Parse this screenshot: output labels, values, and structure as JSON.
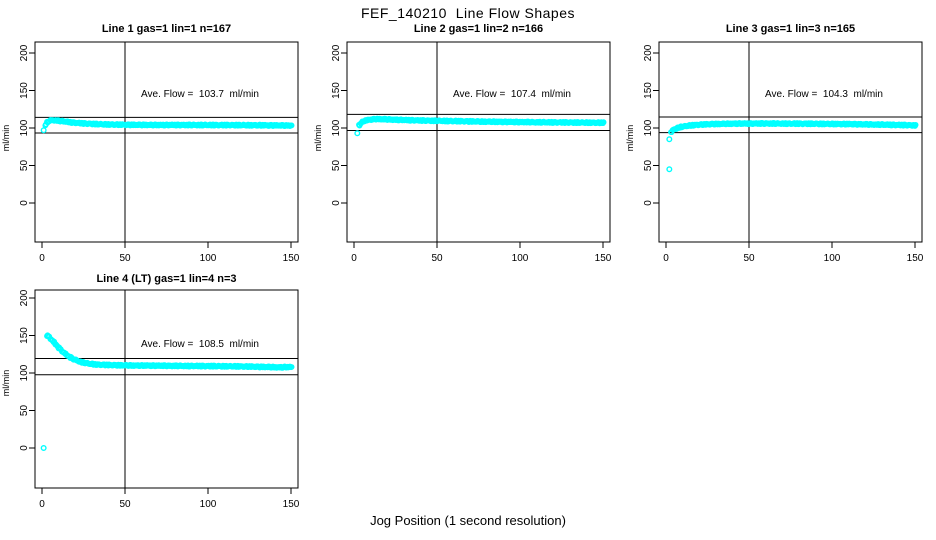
{
  "page": {
    "title": "FEF_140210  Line Flow Shapes",
    "xlabel": "Jog Position (1 second resolution)",
    "point_color": "#00FFFF",
    "axis_color": "#000000",
    "background_color": "#FFFFFF"
  },
  "chart_data": [
    {
      "type": "scatter",
      "title": "Line 1 gas=1 lin=1 n=167",
      "annotation": "Ave. Flow =  103.7  ml/min",
      "ave_flow_ml_min": 103.7,
      "n": 167,
      "ylabel": "ml/min",
      "x_ticks": [
        0,
        50,
        100,
        150
      ],
      "y_ticks": [
        0,
        50,
        100,
        150,
        200
      ],
      "v_ref_line_x": 50,
      "h_ref_lines_y": [
        93.3,
        114.1
      ],
      "x_range": [
        1,
        150
      ],
      "outliers": [
        [
          1,
          97
        ]
      ],
      "band_anchors": [
        [
          2,
          104
        ],
        [
          3,
          107.5
        ],
        [
          4,
          109.5
        ],
        [
          6,
          110.5
        ],
        [
          9,
          110
        ],
        [
          13,
          108.8
        ],
        [
          18,
          107.3
        ],
        [
          25,
          106
        ],
        [
          35,
          105
        ],
        [
          50,
          104.3
        ],
        [
          70,
          104
        ],
        [
          95,
          104
        ],
        [
          120,
          103.8
        ],
        [
          150,
          103.3
        ]
      ]
    },
    {
      "type": "scatter",
      "title": "Line 2 gas=1 lin=2 n=166",
      "annotation": "Ave. Flow =  107.4  ml/min",
      "ave_flow_ml_min": 107.4,
      "n": 166,
      "ylabel": "ml/min",
      "x_ticks": [
        0,
        50,
        100,
        150
      ],
      "y_ticks": [
        0,
        50,
        100,
        150,
        200
      ],
      "v_ref_line_x": 50,
      "h_ref_lines_y": [
        96.7,
        118.1
      ],
      "x_range": [
        2,
        150
      ],
      "outliers": [
        [
          2,
          93
        ]
      ],
      "band_anchors": [
        [
          3,
          104
        ],
        [
          4,
          106.5
        ],
        [
          6,
          109.5
        ],
        [
          9,
          111
        ],
        [
          13,
          112
        ],
        [
          20,
          111.5
        ],
        [
          28,
          110.8
        ],
        [
          40,
          110
        ],
        [
          55,
          109.4
        ],
        [
          75,
          108.6
        ],
        [
          100,
          107.9
        ],
        [
          125,
          107.4
        ],
        [
          150,
          107
        ]
      ]
    },
    {
      "type": "scatter",
      "title": "Line 3 gas=1 lin=3 n=165",
      "annotation": "Ave. Flow =  104.3  ml/min",
      "ave_flow_ml_min": 104.3,
      "n": 165,
      "ylabel": "ml/min",
      "x_ticks": [
        0,
        50,
        100,
        150
      ],
      "y_ticks": [
        0,
        50,
        100,
        150,
        200
      ],
      "v_ref_line_x": 50,
      "h_ref_lines_y": [
        93.9,
        114.7
      ],
      "x_range": [
        2,
        150
      ],
      "outliers": [
        [
          2,
          45
        ],
        [
          2,
          85
        ]
      ],
      "band_anchors": [
        [
          3,
          95
        ],
        [
          4,
          97
        ],
        [
          6,
          99.5
        ],
        [
          9,
          101.5
        ],
        [
          13,
          103
        ],
        [
          19,
          104.3
        ],
        [
          27,
          105.2
        ],
        [
          40,
          105.8
        ],
        [
          60,
          106
        ],
        [
          85,
          105.7
        ],
        [
          110,
          105.2
        ],
        [
          130,
          104.5
        ],
        [
          150,
          103.5
        ]
      ]
    },
    {
      "type": "scatter",
      "title": "Line 4 (LT) gas=1 lin=4 n=3",
      "annotation": "Ave. Flow =  108.5  ml/min",
      "ave_flow_ml_min": 108.5,
      "n": 3,
      "ylabel": "ml/min",
      "x_ticks": [
        0,
        50,
        100,
        150
      ],
      "y_ticks": [
        0,
        50,
        100,
        150,
        200
      ],
      "v_ref_line_x": 50,
      "h_ref_lines_y": [
        97.7,
        119.4
      ],
      "x_range": [
        1,
        150
      ],
      "outliers": [
        [
          1,
          0
        ]
      ],
      "band_anchors": [
        [
          3,
          150
        ],
        [
          4,
          148
        ],
        [
          6,
          143.5
        ],
        [
          8,
          138.5
        ],
        [
          10,
          133.5
        ],
        [
          13,
          127
        ],
        [
          16,
          122
        ],
        [
          19,
          118.3
        ],
        [
          23,
          114.8
        ],
        [
          27,
          112.8
        ],
        [
          32,
          111.4
        ],
        [
          40,
          110.6
        ],
        [
          55,
          110
        ],
        [
          75,
          109.6
        ],
        [
          100,
          109.2
        ],
        [
          120,
          108.8
        ],
        [
          135,
          108
        ],
        [
          143,
          107.6
        ],
        [
          150,
          108
        ]
      ]
    }
  ]
}
